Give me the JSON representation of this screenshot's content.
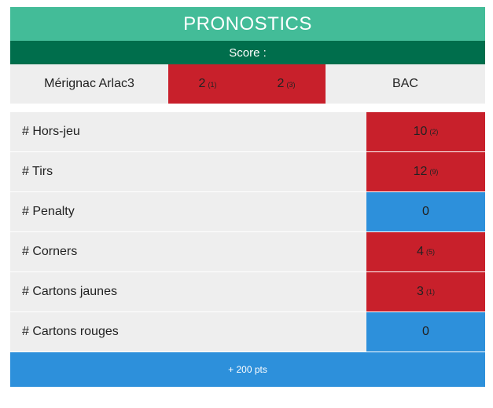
{
  "header": {
    "title": "PRONOSTICS",
    "score_label": "Score :"
  },
  "match": {
    "home_team": "Mérignac Arlac3",
    "away_team": "BAC",
    "home_score": "2",
    "home_score_pts": "(1)",
    "away_score": "2",
    "away_score_pts": "(3)"
  },
  "stats": [
    {
      "label": "# Hors-jeu",
      "value": "10",
      "pts": "(2)",
      "color": "red"
    },
    {
      "label": "# Tirs",
      "value": "12",
      "pts": "(9)",
      "color": "red"
    },
    {
      "label": "# Penalty",
      "value": "0",
      "pts": "",
      "color": "blue"
    },
    {
      "label": "# Corners",
      "value": "4",
      "pts": "(5)",
      "color": "red"
    },
    {
      "label": "# Cartons jaunes",
      "value": "3",
      "pts": "(1)",
      "color": "red"
    },
    {
      "label": "# Cartons rouges",
      "value": "0",
      "pts": "",
      "color": "blue"
    }
  ],
  "footer": {
    "total_label": "+ 200 pts"
  },
  "colors": {
    "header": "#43bc98",
    "subheader": "#006e4c",
    "wrong": "#c8202b",
    "neutral": "#2d90db",
    "row_bg": "#eeeeee"
  }
}
